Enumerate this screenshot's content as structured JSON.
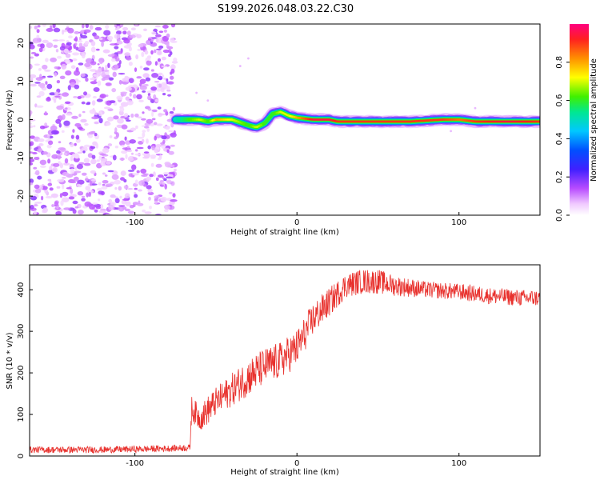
{
  "title": "S199.2026.048.03.22.C30",
  "chart_data": [
    {
      "type": "heatmap",
      "title": "",
      "xlabel": "Height of straight line (km)",
      "ylabel": "Frequency (Hz)",
      "xlim": [
        -165,
        150
      ],
      "ylim": [
        -25,
        25
      ],
      "xticks": [
        -100,
        0,
        100
      ],
      "yticks": [
        20,
        10,
        0,
        -10,
        -20
      ],
      "colorbar": {
        "label": "Normalized spectral amplitude",
        "range": [
          0.0,
          1.0
        ],
        "ticks": [
          0.0,
          0.2,
          0.4,
          0.6,
          0.8
        ]
      },
      "noise_region_x": [
        -165,
        -75
      ],
      "signal_track": {
        "x": [
          -75,
          -60,
          -55,
          -50,
          -40,
          -30,
          -25,
          -20,
          -15,
          -10,
          -5,
          0,
          10,
          20,
          25,
          50,
          70,
          90,
          100,
          110,
          130,
          150
        ],
        "y": [
          0,
          0,
          -0.5,
          0,
          0,
          -1.5,
          -2,
          -1,
          1.5,
          2,
          1,
          0.5,
          0,
          0,
          -0.5,
          -0.5,
          -0.5,
          0,
          0,
          -0.5,
          -0.5,
          -0.5
        ],
        "amplitude": [
          0.5,
          0.7,
          0.6,
          0.8,
          0.7,
          0.6,
          0.7,
          0.6,
          0.6,
          0.7,
          0.7,
          0.8,
          0.95,
          0.95,
          0.9,
          0.9,
          0.9,
          0.9,
          0.85,
          0.9,
          0.95,
          0.9
        ]
      }
    },
    {
      "type": "line",
      "title": "",
      "xlabel": "Height of straight line (km)",
      "ylabel": "SNR (10 * v/v)",
      "xlim": [
        -165,
        150
      ],
      "ylim": [
        0,
        460
      ],
      "xticks": [
        -100,
        0,
        100
      ],
      "yticks": [
        0,
        100,
        200,
        300,
        400
      ],
      "series": [
        {
          "name": "SNR",
          "color": "#e8312d",
          "x": [
            -165,
            -120,
            -80,
            -66,
            -65,
            -60,
            -55,
            -50,
            -40,
            -30,
            -20,
            -10,
            0,
            10,
            20,
            30,
            40,
            50,
            60,
            80,
            100,
            120,
            140,
            150
          ],
          "y": [
            15,
            15,
            18,
            20,
            115,
            90,
            110,
            130,
            160,
            190,
            215,
            230,
            260,
            330,
            370,
            410,
            420,
            420,
            410,
            400,
            395,
            385,
            380,
            380
          ],
          "noise_amplitude": [
            8,
            8,
            8,
            8,
            30,
            30,
            35,
            35,
            40,
            45,
            45,
            45,
            45,
            40,
            35,
            30,
            30,
            30,
            25,
            20,
            20,
            20,
            20,
            20
          ]
        }
      ]
    }
  ]
}
